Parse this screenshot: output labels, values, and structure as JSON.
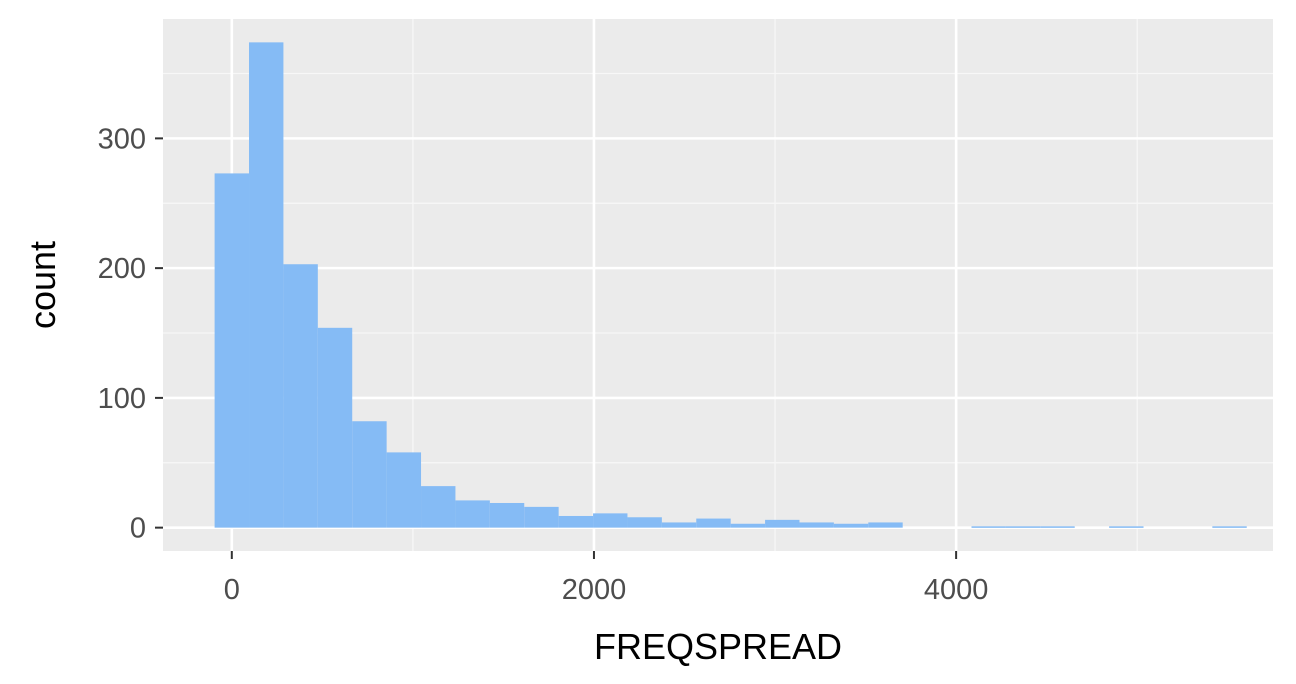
{
  "chart_data": {
    "type": "bar",
    "subtype": "histogram",
    "xlabel": "FREQSPREAD",
    "ylabel": "count",
    "xlim": [
      -380,
      5750
    ],
    "ylim": [
      -18,
      392
    ],
    "x_ticks": [
      0,
      2000,
      4000
    ],
    "x_tick_labels": [
      "0",
      "2000",
      "4000"
    ],
    "y_ticks": [
      0,
      100,
      200,
      300
    ],
    "y_tick_labels": [
      "0",
      "100",
      "200",
      "300"
    ],
    "x_minor_ticks": [
      1000,
      3000,
      5000
    ],
    "y_minor_ticks": [
      50,
      150,
      250,
      350
    ],
    "grid": true,
    "bin_width": 190,
    "bins": [
      {
        "x0": -95,
        "x1": 95,
        "count": 273
      },
      {
        "x0": 95,
        "x1": 285,
        "count": 374
      },
      {
        "x0": 285,
        "x1": 475,
        "count": 203
      },
      {
        "x0": 475,
        "x1": 665,
        "count": 154
      },
      {
        "x0": 665,
        "x1": 855,
        "count": 82
      },
      {
        "x0": 855,
        "x1": 1045,
        "count": 58
      },
      {
        "x0": 1045,
        "x1": 1235,
        "count": 32
      },
      {
        "x0": 1235,
        "x1": 1425,
        "count": 21
      },
      {
        "x0": 1425,
        "x1": 1615,
        "count": 19
      },
      {
        "x0": 1615,
        "x1": 1805,
        "count": 16
      },
      {
        "x0": 1805,
        "x1": 1995,
        "count": 9
      },
      {
        "x0": 1995,
        "x1": 2185,
        "count": 11
      },
      {
        "x0": 2185,
        "x1": 2375,
        "count": 8
      },
      {
        "x0": 2375,
        "x1": 2565,
        "count": 4
      },
      {
        "x0": 2565,
        "x1": 2755,
        "count": 7
      },
      {
        "x0": 2755,
        "x1": 2945,
        "count": 3
      },
      {
        "x0": 2945,
        "x1": 3135,
        "count": 6
      },
      {
        "x0": 3135,
        "x1": 3325,
        "count": 4
      },
      {
        "x0": 3325,
        "x1": 3515,
        "count": 3
      },
      {
        "x0": 3515,
        "x1": 3705,
        "count": 4
      },
      {
        "x0": 3705,
        "x1": 3895,
        "count": 0
      },
      {
        "x0": 3895,
        "x1": 4085,
        "count": 0
      },
      {
        "x0": 4085,
        "x1": 4275,
        "count": 1
      },
      {
        "x0": 4275,
        "x1": 4465,
        "count": 1
      },
      {
        "x0": 4465,
        "x1": 4655,
        "count": 1
      },
      {
        "x0": 4655,
        "x1": 4845,
        "count": 0
      },
      {
        "x0": 4845,
        "x1": 5035,
        "count": 1
      },
      {
        "x0": 5035,
        "x1": 5225,
        "count": 0
      },
      {
        "x0": 5225,
        "x1": 5415,
        "count": 0
      },
      {
        "x0": 5415,
        "x1": 5605,
        "count": 1
      }
    ],
    "colors": {
      "bar_fill": "#85bbf5",
      "panel_background": "#ebebeb",
      "grid_major": "#ffffff",
      "grid_minor": "#f7f7f7",
      "tick_mark": "#333333",
      "tick_label": "#4d4d4d",
      "axis_title": "#000000"
    }
  }
}
